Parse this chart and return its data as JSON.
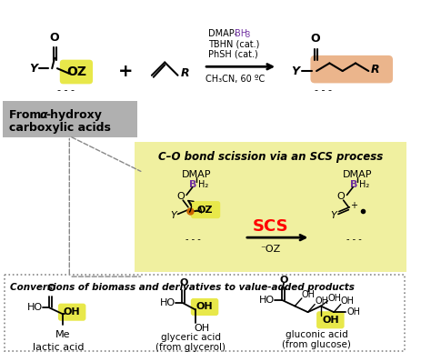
{
  "bg_color": "#ffffff",
  "yellow_highlight": "#e8e84a",
  "orange_highlight": "#e8a878",
  "gray_box_color": "#b0b0b0",
  "light_yellow_bg": "#f0f0a0",
  "dmap_color": "#7030a0",
  "scs_color": "#ff0000",
  "lactic_label": "lactic acid",
  "glyceric_label": "glyceric acid\n(from glycerol)",
  "gluconic_label": "gluconic acid\n(from glucose)"
}
